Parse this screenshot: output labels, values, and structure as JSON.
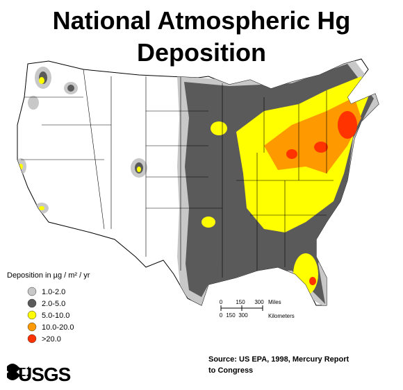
{
  "title_lines": [
    "National Atmospheric Hg",
    "Deposition"
  ],
  "legend": {
    "title": "Deposition in µg / m² / yr",
    "items": [
      {
        "label": "1.0-2.0",
        "color": "#c8c8c8"
      },
      {
        "label": "2.0-5.0",
        "color": "#5a5a5a"
      },
      {
        "label": "5.0-10.0",
        "color": "#ffff00"
      },
      {
        "label": "10.0-20.0",
        "color": "#ff9900"
      },
      {
        "label": ">20.0",
        "color": "#ff3300"
      }
    ]
  },
  "scale_bar": {
    "miles": [
      0,
      150,
      300
    ],
    "miles_unit": "Miles",
    "km": [
      0,
      150,
      300
    ],
    "km_unit": "Kilometers"
  },
  "source_lines": [
    "Source:  US EPA, 1998, Mercury Report",
    "to Congress"
  ],
  "logo": "USGS"
}
